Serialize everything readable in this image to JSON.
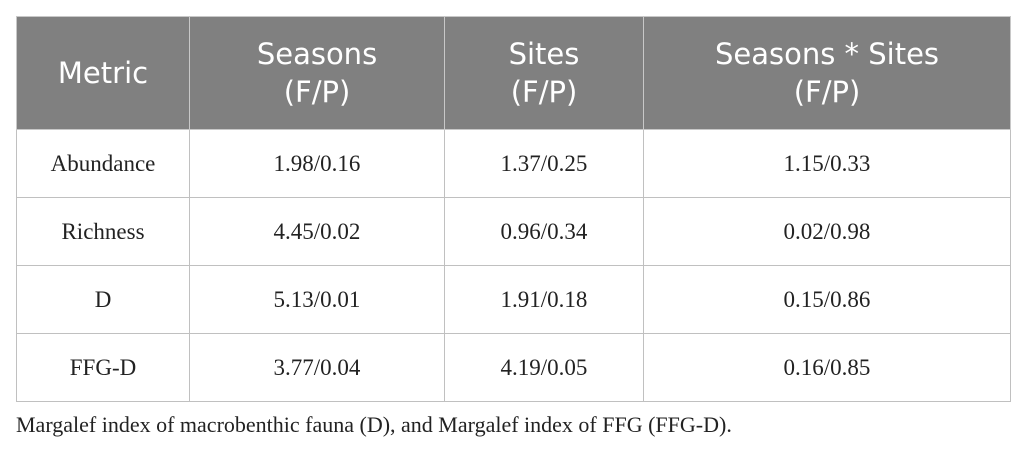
{
  "table": {
    "header": [
      "Metric",
      "Seasons\n(F/P)",
      "Sites\n(F/P)",
      "Seasons * Sites\n(F/P)"
    ],
    "rows": [
      [
        "Abundance",
        "1.98/0.16",
        "1.37/0.25",
        "1.15/0.33"
      ],
      [
        "Richness",
        "4.45/0.02",
        "0.96/0.34",
        "0.02/0.98"
      ],
      [
        "D",
        "5.13/0.01",
        "1.91/0.18",
        "0.15/0.86"
      ],
      [
        "FFG-D",
        "3.77/0.04",
        "4.19/0.05",
        "0.16/0.85"
      ]
    ]
  },
  "footnote": "Margalef index of macrobenthic fauna (D), and Margalef index of FFG (FFG-D)."
}
